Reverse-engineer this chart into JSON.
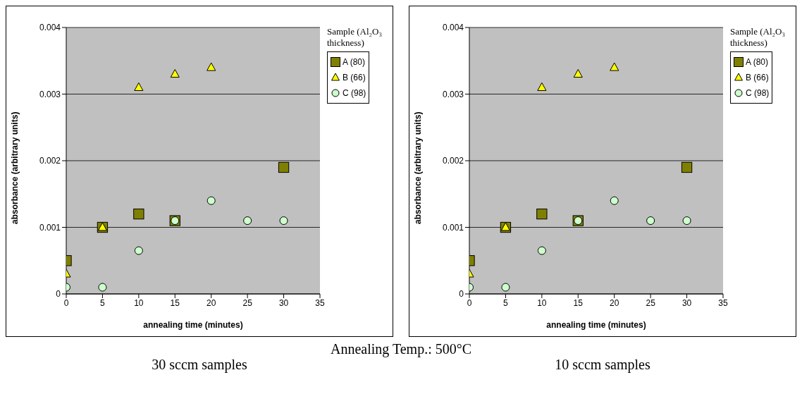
{
  "chart_data": [
    {
      "type": "scatter",
      "subtitle": "30 sccm samples",
      "xlabel": "annealing time (minutes)",
      "ylabel": "absorbance (arbitrary units)",
      "legend_title": "Sample (Al₂O₃ thickness)",
      "annotations": [
        "Annealing Temp.: 500°C"
      ],
      "xlim": [
        0,
        35
      ],
      "xticks": [
        0,
        5,
        10,
        15,
        20,
        25,
        30,
        35
      ],
      "ylim": [
        0,
        0.004
      ],
      "yticks": [
        0,
        0.001,
        0.002,
        0.003,
        0.004
      ],
      "grid": "y",
      "legend": "right",
      "series": [
        {
          "name": "A (80)",
          "color": "#808000",
          "marker": "square",
          "x": [
            0,
            5,
            10,
            15,
            30
          ],
          "values": [
            0.0005,
            0.001,
            0.0012,
            0.0011,
            0.0019
          ]
        },
        {
          "name": "B (66)",
          "color": "#ffff00",
          "marker": "triangle",
          "x": [
            0,
            5,
            10,
            15,
            20
          ],
          "values": [
            0.0003,
            0.001,
            0.0031,
            0.0033,
            0.0034
          ]
        },
        {
          "name": "C (98)",
          "color": "#ccffcc",
          "marker": "circle",
          "x": [
            0,
            5,
            10,
            15,
            20,
            25,
            30
          ],
          "values": [
            0.0001,
            0.0001,
            0.00065,
            0.0011,
            0.0014,
            0.0011,
            0.0011
          ]
        }
      ]
    },
    {
      "type": "scatter",
      "subtitle": "10 sccm samples",
      "xlabel": "annealing time (minutes)",
      "ylabel": "absorbance (arbitrary units)",
      "legend_title": "Sample (Al₂O₃ thickness)",
      "xlim": [
        0,
        35
      ],
      "xticks": [
        0,
        5,
        10,
        15,
        20,
        25,
        30,
        35
      ],
      "ylim": [
        0,
        0.004
      ],
      "yticks": [
        0,
        0.001,
        0.002,
        0.003,
        0.004
      ],
      "grid": "y",
      "legend": "right",
      "series": [
        {
          "name": "A (80)",
          "color": "#808000",
          "marker": "square",
          "x": [
            0,
            5,
            10,
            15,
            30
          ],
          "values": [
            0.0005,
            0.001,
            0.0012,
            0.0011,
            0.0019
          ]
        },
        {
          "name": "B (66)",
          "color": "#ffff00",
          "marker": "triangle",
          "x": [
            0,
            5,
            10,
            15,
            20
          ],
          "values": [
            0.0003,
            0.001,
            0.0031,
            0.0033,
            0.0034
          ]
        },
        {
          "name": "C (98)",
          "color": "#ccffcc",
          "marker": "circle",
          "x": [
            0,
            5,
            10,
            15,
            20,
            25,
            30
          ],
          "values": [
            0.0001,
            0.0001,
            0.00065,
            0.0011,
            0.0014,
            0.0011,
            0.0011
          ]
        }
      ]
    }
  ]
}
